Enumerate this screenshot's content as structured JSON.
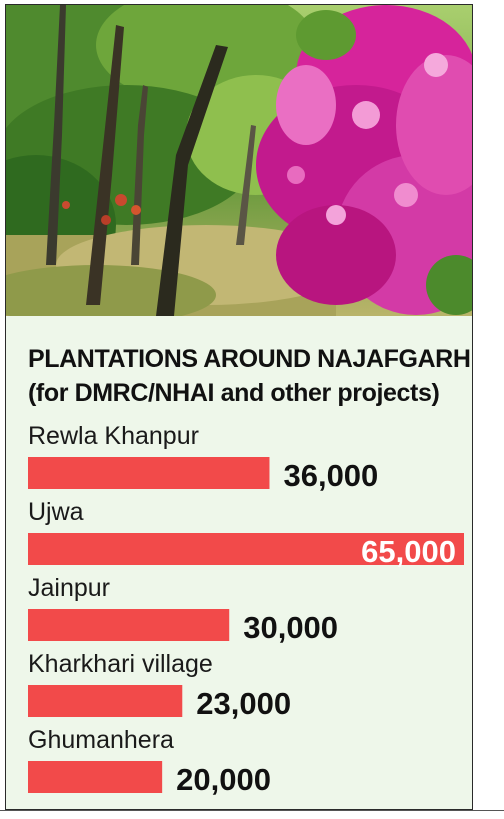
{
  "chart_data": {
    "type": "bar",
    "orientation": "horizontal",
    "title": "PLANTATIONS AROUND NAJAFGARH",
    "subtitle": "(for DMRC/NHAI and other projects)",
    "categories": [
      "Rewla Khanpur",
      "Ujwa",
      "Jainpur",
      "Kharkhari village",
      "Ghumanhera"
    ],
    "values": [
      36000,
      65000,
      30000,
      23000,
      20000
    ],
    "value_labels": [
      "36,000",
      "65,000",
      "30,000",
      "23,000",
      "20,000"
    ],
    "xlim": [
      0,
      65000
    ],
    "grid": false,
    "legend": "none",
    "bar_color": "#f24a4a",
    "value_label_color": "#111111",
    "value_label_inside_color": "#ffffff"
  },
  "colors": {
    "panel_background": "#eef7ea",
    "border": "#2a2a2a"
  }
}
